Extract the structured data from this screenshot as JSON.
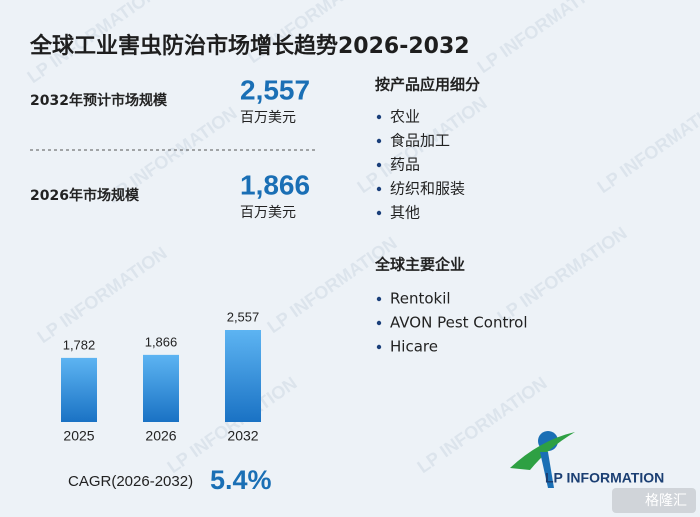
{
  "title": "全球工业害虫防治市场增长趋势2026-2032",
  "stats": [
    {
      "label": "2032年预计市场规模",
      "value": "2,557",
      "unit": "百万美元"
    },
    {
      "label": "2026年市场规模",
      "value": "1,866",
      "unit": "百万美元"
    }
  ],
  "segments": {
    "heading": "按产品应用细分",
    "items": [
      "农业",
      "食品加工",
      "药品",
      "纺织和服装",
      "其他"
    ]
  },
  "companies": {
    "heading": "全球主要企业",
    "items": [
      "Rentokil",
      "AVON Pest Control",
      "Hicare"
    ]
  },
  "chart_data": {
    "type": "bar",
    "categories": [
      "2025",
      "2026",
      "2032"
    ],
    "values": [
      1782,
      1866,
      2557
    ],
    "value_labels": [
      "1,782",
      "1,866",
      "2,557"
    ],
    "color": "#2a8ad8"
  },
  "cagr": {
    "label": "CAGR(2026-2032)",
    "value": "5.4%"
  },
  "logo": "LP INFORMATION",
  "watermark": "LP INFORMATION",
  "badge": "格隆汇"
}
